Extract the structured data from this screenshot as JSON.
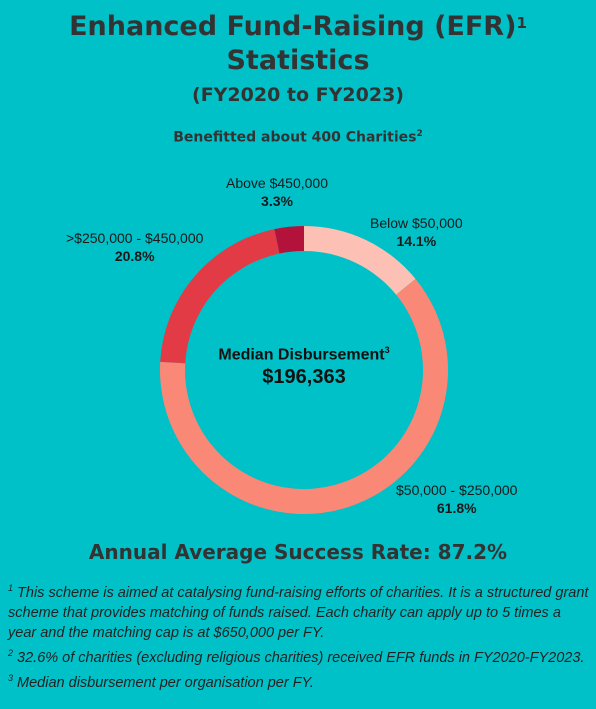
{
  "title": {
    "line1": "Enhanced Fund-Raising (EFR)",
    "line1_sup": "1",
    "line2": "Statistics",
    "subtitle": "(FY2020 to FY2023)"
  },
  "chart_subtitle": {
    "text": "Benefitted about 400 Charities",
    "sup": "2"
  },
  "chart_data": {
    "type": "pie",
    "style": "donut",
    "categories": [
      "Below $50,000",
      "$50,000 - $250,000",
      ">$250,000 - $450,000",
      "Above $450,000"
    ],
    "values": [
      14.1,
      61.8,
      20.8,
      3.3
    ],
    "value_labels": [
      "14.1%",
      "61.8%",
      "20.8%",
      "3.3%"
    ],
    "colors": [
      "#fcc0b4",
      "#f98877",
      "#e23b46",
      "#b3133b"
    ],
    "center_label": "Median Disbursement",
    "center_label_sup": "3",
    "center_value": "$196,363"
  },
  "success_rate": "Annual Average Success Rate: 87.2%",
  "footnotes": [
    {
      "sup": "1",
      "text": " This scheme is aimed at catalysing fund-raising efforts of charities. It is a structured grant scheme that provides matching of funds raised. Each charity can apply up to 5 times a year and the matching cap is at $650,000 per FY."
    },
    {
      "sup": "2",
      "text": " 32.6% of charities (excluding religious charities) received EFR funds in FY2020-FY2023."
    },
    {
      "sup": "3",
      "text": " Median disbursement per organisation per FY."
    }
  ]
}
